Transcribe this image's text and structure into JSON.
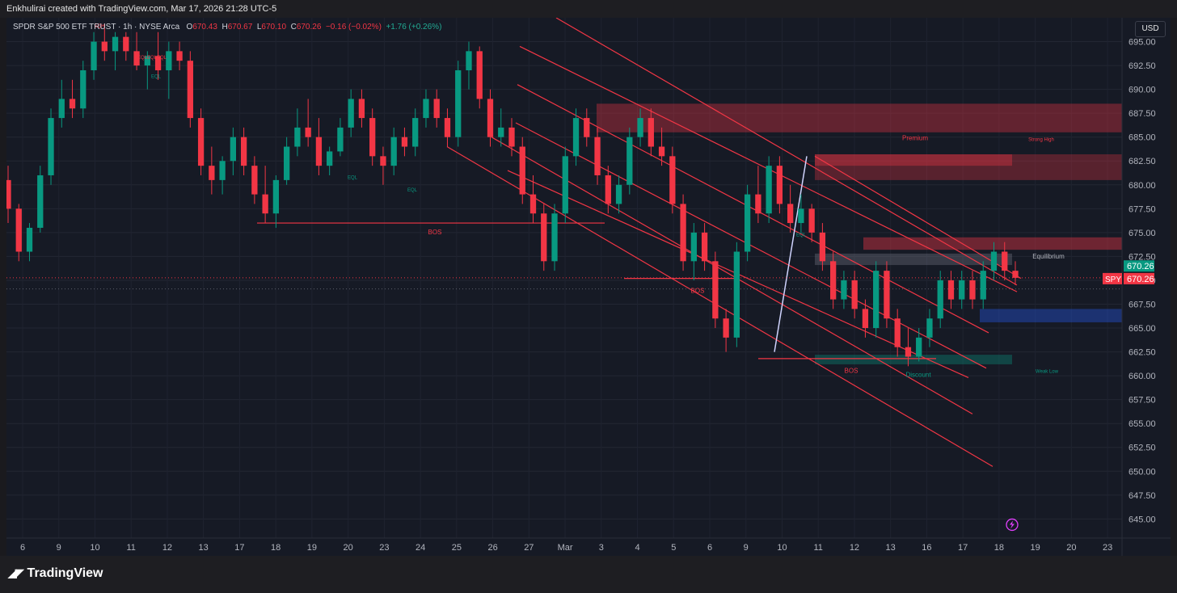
{
  "header": {
    "attribution": "Enkhulirai created with TradingView.com, Mar 17, 2026 21:28 UTC-5"
  },
  "legend": {
    "symbol": "SPDR S&P 500 ETF TRUST · 1h · NYSE Arca",
    "o_label": "O",
    "o_value": "670.43",
    "h_label": "H",
    "h_value": "670.67",
    "l_label": "L",
    "l_value": "670.10",
    "c_label": "C",
    "c_value": "670.26",
    "change": "−0.16 (−0.02%)",
    "extended": "+1.76 (+0.26%)"
  },
  "currency_button": "USD",
  "price_badges": {
    "symbol": "SPY",
    "last_price": "670.26",
    "last_price_2": "670.26",
    "badge_green": "#089981",
    "badge_red": "#f23645"
  },
  "footer": {
    "brand": "TradingView",
    "brand_icon": "tradingview-logo-icon"
  },
  "chart_data": {
    "type": "candlestick",
    "ylim": [
      643,
      697.5
    ],
    "y_ticks": [
      "695.00",
      "692.50",
      "690.00",
      "687.50",
      "685.00",
      "682.50",
      "680.00",
      "677.50",
      "675.00",
      "672.50",
      "670.00",
      "667.50",
      "665.00",
      "662.50",
      "660.00",
      "657.50",
      "655.00",
      "652.50",
      "650.00",
      "647.50",
      "645.00"
    ],
    "x_ticks": [
      "6",
      "9",
      "10",
      "11",
      "12",
      "13",
      "17",
      "18",
      "19",
      "20",
      "23",
      "24",
      "25",
      "26",
      "27",
      "Mar",
      "3",
      "4",
      "5",
      "6",
      "9",
      "10",
      "11",
      "12",
      "13",
      "16",
      "17",
      "18",
      "19",
      "20",
      "23"
    ],
    "candles": [
      {
        "o": 680.5,
        "h": 682,
        "l": 676,
        "c": 677.5
      },
      {
        "o": 677.5,
        "h": 678,
        "l": 672,
        "c": 673
      },
      {
        "o": 673,
        "h": 676,
        "l": 672,
        "c": 675.5
      },
      {
        "o": 675.5,
        "h": 682,
        "l": 675,
        "c": 681
      },
      {
        "o": 681,
        "h": 688,
        "l": 680,
        "c": 687
      },
      {
        "o": 687,
        "h": 691,
        "l": 686,
        "c": 689
      },
      {
        "o": 689,
        "h": 691,
        "l": 687,
        "c": 688
      },
      {
        "o": 688,
        "h": 693,
        "l": 687,
        "c": 692
      },
      {
        "o": 692,
        "h": 696,
        "l": 691,
        "c": 695
      },
      {
        "o": 695,
        "h": 696.5,
        "l": 693,
        "c": 694
      },
      {
        "o": 694,
        "h": 696,
        "l": 692,
        "c": 695.5
      },
      {
        "o": 695.5,
        "h": 696,
        "l": 693,
        "c": 694
      },
      {
        "o": 694,
        "h": 696,
        "l": 692,
        "c": 692.5
      },
      {
        "o": 692.5,
        "h": 694,
        "l": 690,
        "c": 693.5
      },
      {
        "o": 693.5,
        "h": 696,
        "l": 691,
        "c": 692
      },
      {
        "o": 692,
        "h": 695,
        "l": 689,
        "c": 694
      },
      {
        "o": 694,
        "h": 695,
        "l": 692,
        "c": 693
      },
      {
        "o": 693,
        "h": 694,
        "l": 686,
        "c": 687
      },
      {
        "o": 687,
        "h": 688,
        "l": 681,
        "c": 682
      },
      {
        "o": 682,
        "h": 684,
        "l": 679,
        "c": 680.5
      },
      {
        "o": 680.5,
        "h": 683,
        "l": 679,
        "c": 682.5
      },
      {
        "o": 682.5,
        "h": 686,
        "l": 681,
        "c": 685
      },
      {
        "o": 685,
        "h": 686,
        "l": 681,
        "c": 682
      },
      {
        "o": 682,
        "h": 683,
        "l": 678,
        "c": 679
      },
      {
        "o": 679,
        "h": 682,
        "l": 676,
        "c": 677
      },
      {
        "o": 677,
        "h": 681,
        "l": 675.5,
        "c": 680.5
      },
      {
        "o": 680.5,
        "h": 685,
        "l": 680,
        "c": 684
      },
      {
        "o": 684,
        "h": 688,
        "l": 683,
        "c": 686
      },
      {
        "o": 686,
        "h": 689,
        "l": 684,
        "c": 685
      },
      {
        "o": 685,
        "h": 687,
        "l": 681,
        "c": 682
      },
      {
        "o": 682,
        "h": 684,
        "l": 681,
        "c": 683.5
      },
      {
        "o": 683.5,
        "h": 687,
        "l": 683,
        "c": 686
      },
      {
        "o": 686,
        "h": 690,
        "l": 685,
        "c": 689
      },
      {
        "o": 689,
        "h": 690,
        "l": 686,
        "c": 687
      },
      {
        "o": 687,
        "h": 688,
        "l": 682,
        "c": 683
      },
      {
        "o": 683,
        "h": 684,
        "l": 680,
        "c": 682
      },
      {
        "o": 682,
        "h": 686,
        "l": 681,
        "c": 685
      },
      {
        "o": 685,
        "h": 686,
        "l": 683,
        "c": 684
      },
      {
        "o": 684,
        "h": 688,
        "l": 683,
        "c": 687
      },
      {
        "o": 687,
        "h": 690,
        "l": 686,
        "c": 689
      },
      {
        "o": 689,
        "h": 690,
        "l": 686,
        "c": 687
      },
      {
        "o": 687,
        "h": 688,
        "l": 684,
        "c": 685
      },
      {
        "o": 685,
        "h": 693,
        "l": 684,
        "c": 692
      },
      {
        "o": 692,
        "h": 695,
        "l": 690,
        "c": 694
      },
      {
        "o": 694,
        "h": 694.5,
        "l": 688,
        "c": 689
      },
      {
        "o": 689,
        "h": 690,
        "l": 684,
        "c": 685
      },
      {
        "o": 685,
        "h": 688,
        "l": 684,
        "c": 686
      },
      {
        "o": 686,
        "h": 687,
        "l": 683,
        "c": 684
      },
      {
        "o": 684,
        "h": 685,
        "l": 678,
        "c": 679
      },
      {
        "o": 679,
        "h": 681,
        "l": 676,
        "c": 677
      },
      {
        "o": 677,
        "h": 678,
        "l": 671,
        "c": 672
      },
      {
        "o": 672,
        "h": 678,
        "l": 671,
        "c": 677
      },
      {
        "o": 677,
        "h": 684,
        "l": 676,
        "c": 683
      },
      {
        "o": 683,
        "h": 688,
        "l": 682,
        "c": 687
      },
      {
        "o": 687,
        "h": 688,
        "l": 684,
        "c": 685
      },
      {
        "o": 685,
        "h": 686,
        "l": 680,
        "c": 681
      },
      {
        "o": 681,
        "h": 682,
        "l": 677,
        "c": 678
      },
      {
        "o": 678,
        "h": 681,
        "l": 677,
        "c": 680
      },
      {
        "o": 680,
        "h": 686,
        "l": 679,
        "c": 685
      },
      {
        "o": 685,
        "h": 688,
        "l": 684,
        "c": 687
      },
      {
        "o": 687,
        "h": 688,
        "l": 683,
        "c": 684
      },
      {
        "o": 684,
        "h": 686,
        "l": 682,
        "c": 683
      },
      {
        "o": 683,
        "h": 684,
        "l": 677,
        "c": 678
      },
      {
        "o": 678,
        "h": 679,
        "l": 671,
        "c": 672
      },
      {
        "o": 672,
        "h": 676,
        "l": 670,
        "c": 675
      },
      {
        "o": 675,
        "h": 676,
        "l": 671,
        "c": 672
      },
      {
        "o": 672,
        "h": 673,
        "l": 665,
        "c": 666
      },
      {
        "o": 666,
        "h": 667,
        "l": 662.5,
        "c": 664
      },
      {
        "o": 664,
        "h": 674,
        "l": 663,
        "c": 673
      },
      {
        "o": 673,
        "h": 680,
        "l": 672,
        "c": 679
      },
      {
        "o": 679,
        "h": 682,
        "l": 676,
        "c": 677
      },
      {
        "o": 677,
        "h": 683,
        "l": 676,
        "c": 682
      },
      {
        "o": 682,
        "h": 683,
        "l": 677,
        "c": 678
      },
      {
        "o": 678,
        "h": 680,
        "l": 675,
        "c": 676
      },
      {
        "o": 676,
        "h": 679,
        "l": 675,
        "c": 677.5
      },
      {
        "o": 677.5,
        "h": 678,
        "l": 674,
        "c": 675
      },
      {
        "o": 675,
        "h": 676,
        "l": 671,
        "c": 672
      },
      {
        "o": 672,
        "h": 673,
        "l": 667,
        "c": 668
      },
      {
        "o": 668,
        "h": 671,
        "l": 667,
        "c": 670
      },
      {
        "o": 670,
        "h": 671,
        "l": 666,
        "c": 667
      },
      {
        "o": 667,
        "h": 668,
        "l": 664,
        "c": 665
      },
      {
        "o": 665,
        "h": 672,
        "l": 664,
        "c": 671
      },
      {
        "o": 671,
        "h": 672,
        "l": 665,
        "c": 666
      },
      {
        "o": 666,
        "h": 667,
        "l": 662,
        "c": 663
      },
      {
        "o": 663,
        "h": 665,
        "l": 661,
        "c": 662
      },
      {
        "o": 662,
        "h": 665,
        "l": 661.5,
        "c": 664
      },
      {
        "o": 664,
        "h": 667,
        "l": 663,
        "c": 666
      },
      {
        "o": 666,
        "h": 671,
        "l": 665,
        "c": 670
      },
      {
        "o": 670,
        "h": 671,
        "l": 667,
        "c": 668
      },
      {
        "o": 668,
        "h": 671,
        "l": 667,
        "c": 670
      },
      {
        "o": 670,
        "h": 671,
        "l": 667,
        "c": 668
      },
      {
        "o": 668,
        "h": 672,
        "l": 667,
        "c": 671
      },
      {
        "o": 671,
        "h": 674,
        "l": 670,
        "c": 673
      },
      {
        "o": 673,
        "h": 674,
        "l": 670,
        "c": 671
      },
      {
        "o": 671,
        "h": 672,
        "l": 669.5,
        "c": 670.26
      }
    ],
    "annotations": [
      "EQH",
      "EQL",
      "EQLEQLEQL",
      "EQL",
      "EQL",
      "BOS",
      "BOS",
      "BOS",
      "EQL",
      "Premium",
      "Strong High",
      "Equilibrium",
      "Discount",
      "Weak Low"
    ],
    "colors": {
      "up": "#089981",
      "down": "#f23645",
      "channel": "#f23645",
      "zone_red": "#f23645",
      "zone_blue": "#2962ff",
      "zone_green": "#089981"
    }
  }
}
